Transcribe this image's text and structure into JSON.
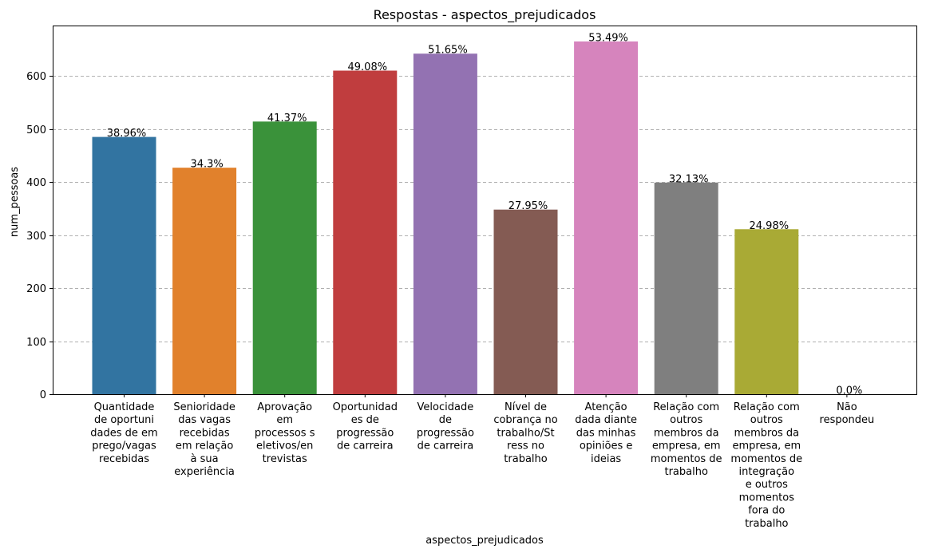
{
  "chart_data": {
    "type": "bar",
    "title": "Respostas - aspectos_prejudicados",
    "xlabel": "aspectos_prejudicados",
    "ylabel": "num_pessoas",
    "ylim": [
      0,
      695
    ],
    "yticks": [
      0,
      100,
      200,
      300,
      400,
      500,
      600
    ],
    "grid": "horizontal dashed",
    "categories": [
      [
        "Quantidade",
        "de oportuni",
        "dades de em",
        "prego/vagas",
        "recebidas"
      ],
      [
        "Senioridade",
        "das vagas",
        "recebidas",
        "em relação",
        "à sua",
        "experiência"
      ],
      [
        "Aprovação",
        "em",
        "processos s",
        "eletivos/en",
        "trevistas"
      ],
      [
        "Oportunidad",
        "es de",
        "progressão",
        "de carreira"
      ],
      [
        "Velocidade",
        "de",
        "progressão",
        "de carreira"
      ],
      [
        "Nível de",
        "cobrança no",
        "trabalho/St",
        "ress no",
        "trabalho"
      ],
      [
        "Atenção",
        "dada diante",
        "das minhas",
        "opiniões e",
        "ideias"
      ],
      [
        "Relação com",
        "outros",
        "membros da",
        "empresa, em",
        "momentos de",
        "trabalho"
      ],
      [
        "Relação com",
        "outros",
        "membros da",
        "empresa, em",
        "momentos de",
        "integração",
        "e outros",
        "momentos",
        "fora do",
        "trabalho"
      ],
      [
        "Não",
        "respondeu"
      ]
    ],
    "values": [
      485,
      427,
      514,
      610,
      642,
      348,
      665,
      399,
      311,
      0
    ],
    "data_labels": [
      "38.96%",
      "34.3%",
      "41.37%",
      "49.08%",
      "51.65%",
      "27.95%",
      "53.49%",
      "32.13%",
      "24.98%",
      "0.0%"
    ],
    "colors": [
      "#3274a1",
      "#e1812c",
      "#3a923a",
      "#c03d3e",
      "#9372b2",
      "#845b53",
      "#d684bd",
      "#7f7f7f",
      "#a9aa35",
      "#2eb0c2"
    ]
  }
}
